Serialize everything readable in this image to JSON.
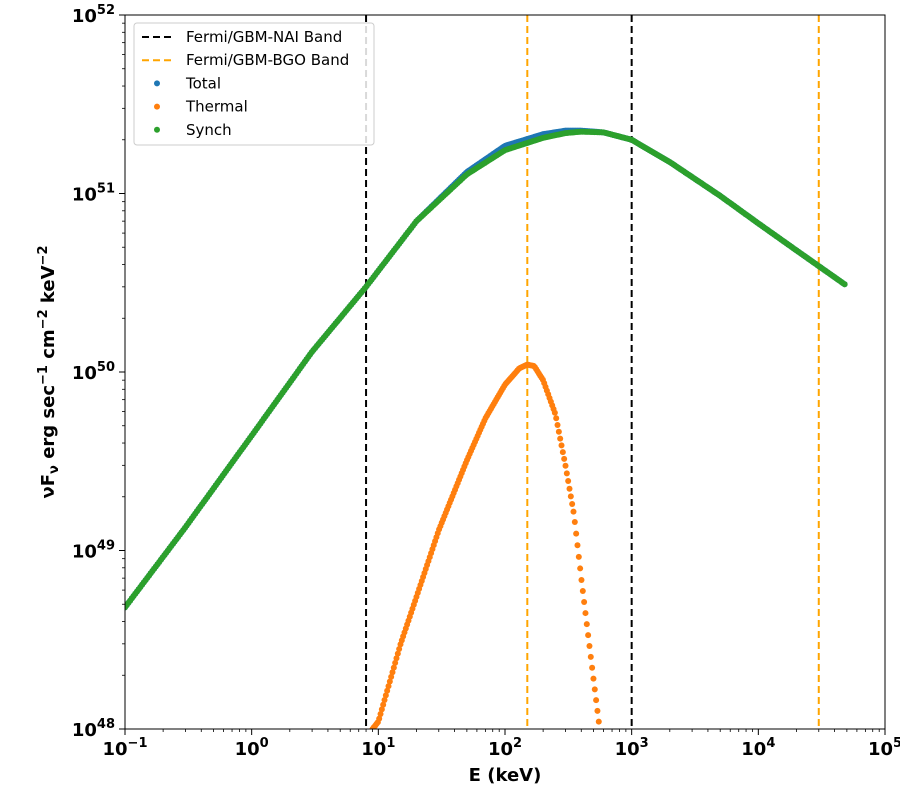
{
  "chart_data": {
    "type": "scatter",
    "xlabel": "E (keV)",
    "ylabel_parts": [
      "νF",
      "ν",
      " erg sec",
      "−1",
      " cm",
      "−2",
      " keV",
      "−2"
    ],
    "xscale": "log",
    "yscale": "log",
    "xlim": [
      0.1,
      100000
    ],
    "ylim": [
      1e+48,
      1e+52
    ],
    "x_ticks": [
      {
        "value": 0.1,
        "base": "10",
        "exp": "−1"
      },
      {
        "value": 1,
        "base": "10",
        "exp": "0"
      },
      {
        "value": 10,
        "base": "10",
        "exp": "1"
      },
      {
        "value": 100,
        "base": "10",
        "exp": "2"
      },
      {
        "value": 1000,
        "base": "10",
        "exp": "3"
      },
      {
        "value": 10000,
        "base": "10",
        "exp": "4"
      },
      {
        "value": 100000,
        "base": "10",
        "exp": "5"
      }
    ],
    "y_ticks": [
      {
        "value": 1e+48,
        "base": "10",
        "exp": "48"
      },
      {
        "value": 1e+49,
        "base": "10",
        "exp": "49"
      },
      {
        "value": 1e+50,
        "base": "10",
        "exp": "50"
      },
      {
        "value": 1e+51,
        "base": "10",
        "exp": "51"
      },
      {
        "value": 1e+52,
        "base": "10",
        "exp": "52"
      }
    ],
    "grid": false,
    "legend_position": "top-left",
    "vertical_lines": [
      {
        "name": "Fermi/GBM-NAI Band",
        "color": "#000000",
        "x": [
          8,
          1000
        ]
      },
      {
        "name": "Fermi/GBM-BGO Band",
        "color": "#ffa500",
        "x": [
          150,
          30000
        ]
      }
    ],
    "series": [
      {
        "name": "Total",
        "color": "#1f77b4",
        "x": [
          0.1,
          0.3,
          1,
          3,
          8,
          20,
          50,
          100,
          200,
          300,
          400,
          600,
          1000,
          2000,
          5000,
          10000,
          20000,
          48000
        ],
        "y": [
          4.8e+48,
          1.35e+49,
          4.4e+49,
          1.3e+50,
          3e+50,
          7e+50,
          1.32e+51,
          1.85e+51,
          2.15e+51,
          2.25e+51,
          2.25e+51,
          2.2e+51,
          2e+51,
          1.5e+51,
          9.7e+50,
          6.8e+50,
          4.8e+50,
          3.1e+50
        ]
      },
      {
        "name": "Thermal",
        "color": "#ff7f0e",
        "x": [
          9,
          10,
          15,
          20,
          30,
          50,
          70,
          100,
          130,
          150,
          170,
          200,
          250,
          300,
          350,
          400,
          450,
          500,
          550
        ],
        "y": [
          1e+48,
          1.1e+48,
          3e+48,
          5.5e+48,
          1.3e+49,
          3.2e+49,
          5.5e+49,
          8.5e+49,
          1.05e+50,
          1.1e+50,
          1.08e+50,
          9e+49,
          5.8e+49,
          3e+49,
          1.6e+49,
          7e+48,
          3.5e+48,
          1.9e+48,
          1.1e+48
        ]
      },
      {
        "name": "Synch",
        "color": "#2ca02c",
        "x": [
          0.1,
          0.3,
          1,
          3,
          8,
          20,
          50,
          100,
          200,
          300,
          400,
          600,
          1000,
          2000,
          5000,
          10000,
          20000,
          48000
        ],
        "y": [
          4.8e+48,
          1.35e+49,
          4.4e+49,
          1.3e+50,
          3e+50,
          7e+50,
          1.28e+51,
          1.75e+51,
          2.05e+51,
          2.18e+51,
          2.22e+51,
          2.2e+51,
          2e+51,
          1.5e+51,
          9.7e+50,
          6.8e+50,
          4.8e+50,
          3.1e+50
        ]
      }
    ]
  }
}
